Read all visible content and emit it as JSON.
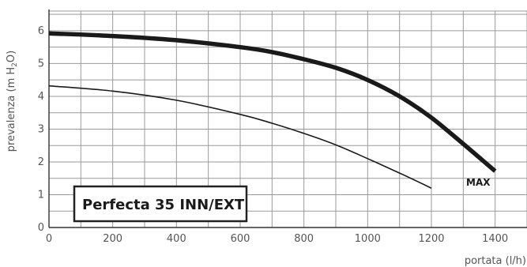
{
  "chart_data": {
    "type": "line",
    "title": "",
    "xlabel": "portata (l/h)",
    "ylabel": {
      "main": "prevalenza (m H",
      "sub": "2",
      "tail": "O)"
    },
    "xlim": [
      0,
      1500
    ],
    "ylim": [
      0,
      6.6
    ],
    "x_ticks": [
      0,
      200,
      400,
      600,
      800,
      1000,
      1200,
      1400
    ],
    "y_ticks": [
      0,
      1,
      2,
      3,
      4,
      5,
      6
    ],
    "grid": true,
    "grid_x_step": 100,
    "grid_y_step": 0.5,
    "annotation_box": "Perfecta 35 INN/EXT",
    "series": [
      {
        "name": "MAX",
        "style": "thick",
        "color": "#1a1a1a",
        "x": [
          0,
          200,
          400,
          600,
          700,
          800,
          900,
          1000,
          1100,
          1200,
          1300,
          1400
        ],
        "y": [
          5.92,
          5.84,
          5.71,
          5.5,
          5.35,
          5.13,
          4.87,
          4.5,
          4.0,
          3.35,
          2.55,
          1.72
        ]
      },
      {
        "name": "",
        "style": "thin",
        "color": "#1a1a1a",
        "x": [
          0,
          200,
          400,
          600,
          700,
          800,
          900,
          1000,
          1100,
          1200
        ],
        "y": [
          4.32,
          4.16,
          3.88,
          3.45,
          3.18,
          2.87,
          2.52,
          2.1,
          1.66,
          1.2
        ]
      }
    ]
  }
}
